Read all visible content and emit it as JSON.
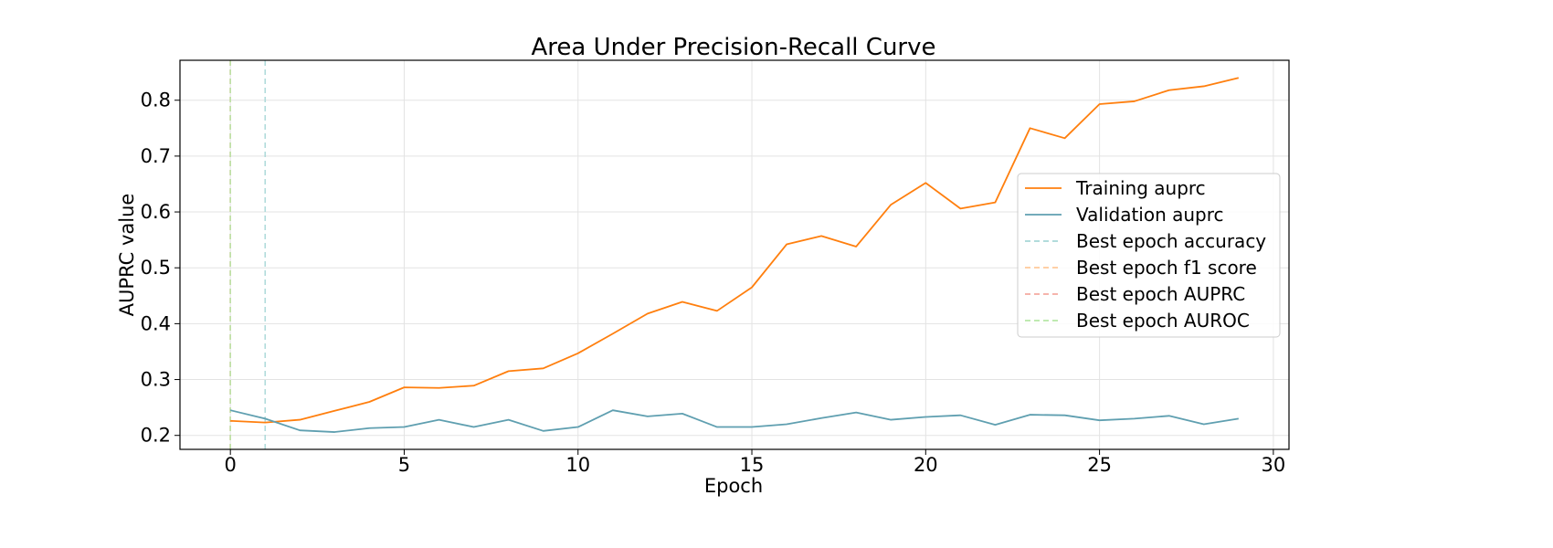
{
  "chart_data": {
    "type": "line",
    "title": "Area Under Precision-Recall Curve",
    "xlabel": "Epoch",
    "ylabel": "AUPRC value",
    "xlim": [
      -1.45,
      30.45
    ],
    "ylim": [
      0.175,
      0.8715
    ],
    "xticks": [
      0,
      5,
      10,
      15,
      20,
      25,
      30
    ],
    "yticks": [
      0.2,
      0.3,
      0.4,
      0.5,
      0.6,
      0.7,
      0.8
    ],
    "ytick_labels": [
      "0.2",
      "0.3",
      "0.4",
      "0.5",
      "0.6",
      "0.7",
      "0.8"
    ],
    "grid": true,
    "legend_position": "center-right",
    "x": [
      0,
      1,
      2,
      3,
      4,
      5,
      6,
      7,
      8,
      9,
      10,
      11,
      12,
      13,
      14,
      15,
      16,
      17,
      18,
      19,
      20,
      21,
      22,
      23,
      24,
      25,
      26,
      27,
      28,
      29
    ],
    "series": [
      {
        "name": "Training auprc",
        "color": "#ff7f0e",
        "values": [
          0.226,
          0.223,
          0.228,
          0.244,
          0.26,
          0.286,
          0.285,
          0.289,
          0.315,
          0.32,
          0.347,
          0.382,
          0.418,
          0.439,
          0.423,
          0.465,
          0.542,
          0.557,
          0.538,
          0.613,
          0.652,
          0.606,
          0.617,
          0.75,
          0.732,
          0.793,
          0.798,
          0.818,
          0.825,
          0.84
        ]
      },
      {
        "name": "Validation auprc",
        "color": "#5f9fb0",
        "values": [
          0.245,
          0.23,
          0.209,
          0.206,
          0.213,
          0.215,
          0.228,
          0.215,
          0.228,
          0.208,
          0.215,
          0.245,
          0.234,
          0.239,
          0.215,
          0.215,
          0.22,
          0.231,
          0.241,
          0.228,
          0.233,
          0.236,
          0.219,
          0.237,
          0.236,
          0.227,
          0.23,
          0.235,
          0.22,
          0.23
        ]
      }
    ],
    "vlines": [
      {
        "name": "Best epoch accuracy",
        "x": 1,
        "color": "#a8d8d8"
      },
      {
        "name": "Best epoch f1 score",
        "x": 0,
        "color": "#ffc99a"
      },
      {
        "name": "Best epoch AUPRC",
        "x": 0,
        "color": "#f5aaa0"
      },
      {
        "name": "Best epoch AUROC",
        "x": 0,
        "color": "#b6e8a6"
      }
    ]
  }
}
